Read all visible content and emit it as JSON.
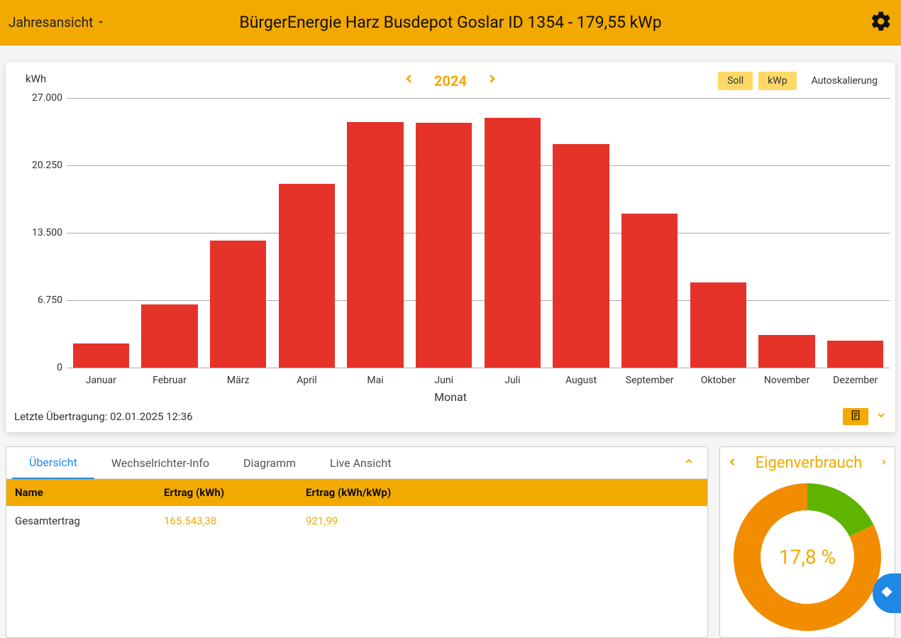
{
  "header": {
    "view_label": "Jahresansicht",
    "title": "BürgerEnergie Harz Busdepot Goslar ID 1354 - 179,55 kWp"
  },
  "chart": {
    "type": "bar",
    "y_unit": "kWh",
    "year": "2024",
    "toggles": {
      "soll": "Soll",
      "kwp": "kWp",
      "autoscale": "Autoskalierung"
    },
    "categories": [
      "Januar",
      "Februar",
      "März",
      "April",
      "Mai",
      "Juni",
      "Juli",
      "August",
      "September",
      "Oktober",
      "November",
      "Dezember"
    ],
    "values": [
      2400,
      6300,
      12700,
      18400,
      24600,
      24500,
      25000,
      22400,
      15400,
      8500,
      3300,
      2700
    ],
    "bar_color": "#e5332a",
    "ylim": [
      0,
      27000
    ],
    "yticks": [
      0,
      6750,
      13500,
      20250,
      27000
    ],
    "ytick_labels": [
      "0",
      "6.750",
      "13.500",
      "20.250",
      "27.000"
    ],
    "grid_color": "#aaaaaa",
    "background_color": "#ffffff",
    "x_axis_title": "Monat",
    "bar_width": 0.82
  },
  "footer": {
    "last_transfer": "Letzte Übertragung: 02.01.2025 12:36"
  },
  "tabs": [
    "Übersicht",
    "Wechselrichter-Info",
    "Diagramm",
    "Live Ansicht"
  ],
  "table": {
    "columns": [
      "Name",
      "Ertrag (kWh)",
      "Ertrag (kWh/kWp)"
    ],
    "rows": [
      [
        "Gesamtertrag",
        "165.543,38",
        "921,99"
      ]
    ],
    "value_color": "#f2a900",
    "header_bg": "#f2a900"
  },
  "donut": {
    "title": "Eigenverbrauch",
    "percent_label": "17,8 %",
    "percent_value": 17.8,
    "segments": [
      {
        "fraction": 0.178,
        "color": "#5fb400"
      },
      {
        "fraction": 0.822,
        "color": "#f28c00"
      }
    ],
    "thickness": 38,
    "outer_radius": 104
  },
  "colors": {
    "accent": "#f2a900",
    "link": "#1e88e5"
  }
}
